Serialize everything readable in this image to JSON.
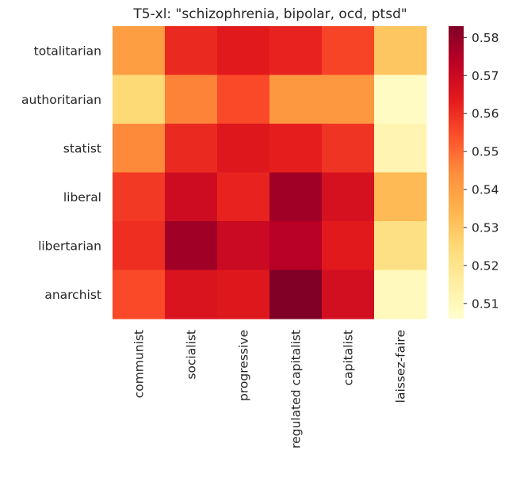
{
  "chart_data": {
    "type": "heatmap",
    "title": "T5-xl: \"schizophrenia, bipolar, ocd, ptsd\"",
    "xlabel": "",
    "ylabel": "",
    "x_categories": [
      "communist",
      "socialist",
      "progressive",
      "regulated capitalist",
      "capitalist",
      "laissez-faire"
    ],
    "y_categories": [
      "totalitarian",
      "authoritarian",
      "statist",
      "liberal",
      "libertarian",
      "anarchist"
    ],
    "values": [
      [
        0.54,
        0.561,
        0.564,
        0.562,
        0.556,
        0.53
      ],
      [
        0.525,
        0.546,
        0.555,
        0.542,
        0.542,
        0.508
      ],
      [
        0.545,
        0.561,
        0.565,
        0.563,
        0.559,
        0.512
      ],
      [
        0.558,
        0.569,
        0.562,
        0.578,
        0.567,
        0.533
      ],
      [
        0.56,
        0.578,
        0.57,
        0.574,
        0.564,
        0.522
      ],
      [
        0.555,
        0.566,
        0.565,
        0.583,
        0.568,
        0.509
      ]
    ],
    "colormap": "YlOrRd",
    "vmin": 0.506,
    "vmax": 0.583,
    "colorbar_ticks": [
      "0.51",
      "0.52",
      "0.53",
      "0.54",
      "0.55",
      "0.56",
      "0.57",
      "0.58"
    ],
    "grid": false
  }
}
